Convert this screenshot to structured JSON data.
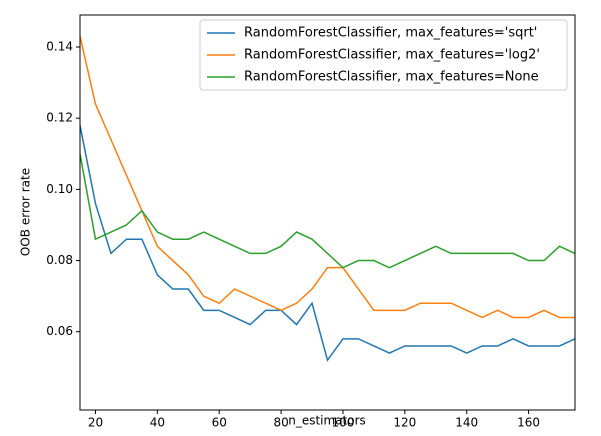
{
  "chart_data": {
    "type": "line",
    "xlabel": "n_estimators",
    "ylabel": "OOB error rate",
    "x": [
      15,
      20,
      25,
      30,
      35,
      40,
      45,
      50,
      55,
      60,
      65,
      70,
      75,
      80,
      85,
      90,
      95,
      100,
      105,
      110,
      115,
      120,
      125,
      130,
      135,
      140,
      145,
      150,
      155,
      160,
      165,
      170,
      175
    ],
    "series": [
      {
        "name": "RandomForestClassifier, max_features='sqrt'",
        "color": "#1f77b4",
        "values": [
          0.118,
          0.096,
          0.082,
          0.086,
          0.086,
          0.076,
          0.072,
          0.072,
          0.066,
          0.066,
          0.064,
          0.062,
          0.066,
          0.066,
          0.062,
          0.068,
          0.052,
          0.058,
          0.058,
          0.056,
          0.054,
          0.056,
          0.056,
          0.056,
          0.056,
          0.054,
          0.056,
          0.056,
          0.058,
          0.056,
          0.056,
          0.056,
          0.058
        ]
      },
      {
        "name": "RandomForestClassifier, max_features='log2'",
        "color": "#ff7f0e",
        "values": [
          0.143,
          0.124,
          0.114,
          0.104,
          0.094,
          0.084,
          0.08,
          0.076,
          0.07,
          0.068,
          0.072,
          0.07,
          0.068,
          0.066,
          0.068,
          0.072,
          0.078,
          0.078,
          0.072,
          0.066,
          0.066,
          0.066,
          0.068,
          0.068,
          0.068,
          0.066,
          0.064,
          0.066,
          0.064,
          0.064,
          0.066,
          0.064,
          0.064
        ]
      },
      {
        "name": "RandomForestClassifier, max_features=None",
        "color": "#2ca02c",
        "values": [
          0.11,
          0.086,
          0.088,
          0.09,
          0.094,
          0.088,
          0.086,
          0.086,
          0.088,
          0.086,
          0.084,
          0.082,
          0.082,
          0.084,
          0.088,
          0.086,
          0.082,
          0.078,
          0.08,
          0.08,
          0.078,
          0.08,
          0.082,
          0.084,
          0.082,
          0.082,
          0.082,
          0.082,
          0.082,
          0.08,
          0.08,
          0.084,
          0.082
        ]
      }
    ],
    "xlim": [
      15,
      175
    ],
    "ylim": [
      0.038,
      0.149
    ],
    "xticks": [
      20,
      40,
      60,
      80,
      100,
      120,
      140,
      160
    ],
    "yticks": [
      0.06,
      0.08,
      {
        "value": 0.1,
        "label": "0.10"
      },
      0.12,
      0.14
    ],
    "grid": false,
    "legend": "upper right"
  }
}
